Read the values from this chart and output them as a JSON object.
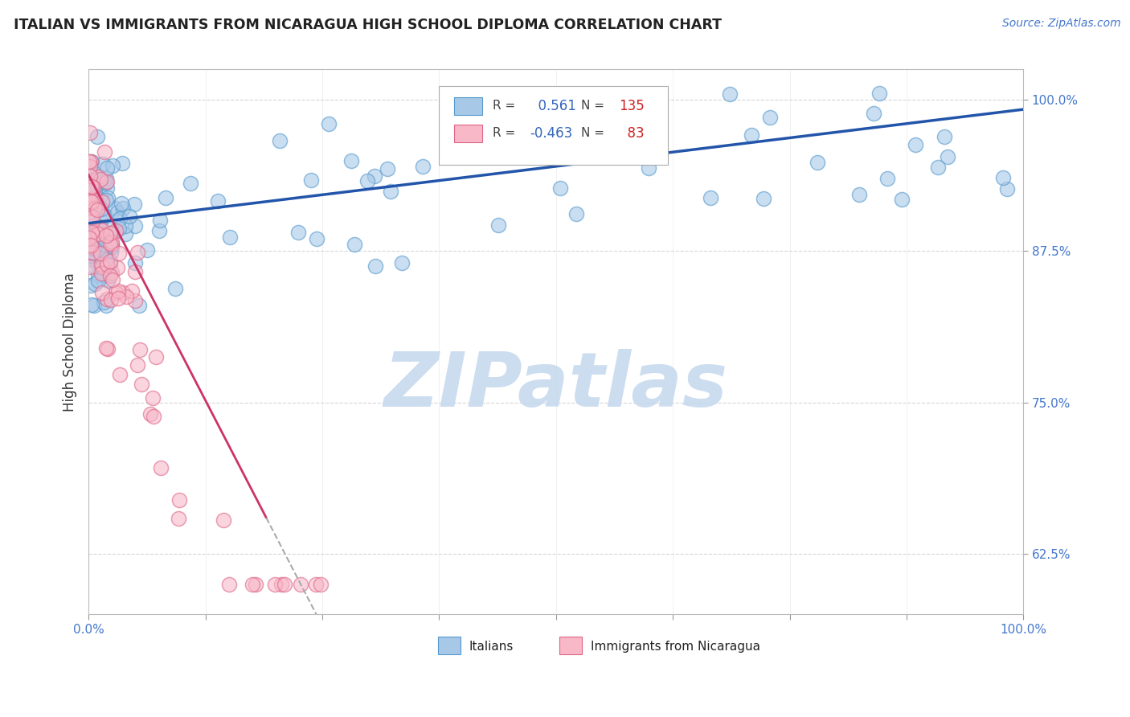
{
  "title": "ITALIAN VS IMMIGRANTS FROM NICARAGUA HIGH SCHOOL DIPLOMA CORRELATION CHART",
  "source": "Source: ZipAtlas.com",
  "ylabel": "High School Diploma",
  "yticks": [
    0.625,
    0.75,
    0.875,
    1.0
  ],
  "ytick_labels": [
    "62.5%",
    "75.0%",
    "87.5%",
    "100.0%"
  ],
  "xtick_labels": [
    "0.0%",
    "100.0%"
  ],
  "blue_R": 0.561,
  "blue_N": 135,
  "pink_R": -0.463,
  "pink_N": 83,
  "legend_label_blue": "Italians",
  "legend_label_pink": "Immigrants from Nicaragua",
  "blue_color": "#a8c8e8",
  "pink_color": "#f8b8c8",
  "blue_edge": "#5599cc",
  "pink_edge": "#dd6688",
  "trend_blue": "#2255aa",
  "trend_pink": "#cc3366",
  "watermark_color": "#c5d8ee",
  "watermark_text": "ZIPatlas",
  "background": "#ffffff",
  "grid_color": "#cccccc",
  "title_color": "#222222",
  "source_color": "#4477cc",
  "axis_label_color": "#333333",
  "tick_color_y": "#4477cc",
  "tick_color_x": "#4477cc"
}
